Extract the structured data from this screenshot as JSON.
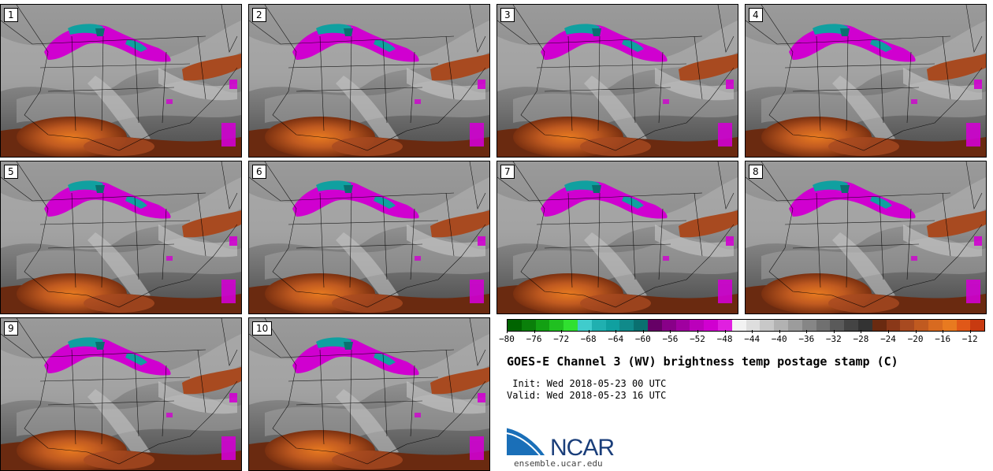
{
  "panels": [
    {
      "label": "1"
    },
    {
      "label": "2"
    },
    {
      "label": "3"
    },
    {
      "label": "4"
    },
    {
      "label": "5"
    },
    {
      "label": "6"
    },
    {
      "label": "7"
    },
    {
      "label": "8"
    },
    {
      "label": "9"
    },
    {
      "label": "10"
    }
  ],
  "colorbar": {
    "ticks": [
      "−80",
      "−76",
      "−72",
      "−68",
      "−64",
      "−60",
      "−56",
      "−52",
      "−48",
      "−44",
      "−40",
      "−36",
      "−32",
      "−28",
      "−24",
      "−20",
      "−16",
      "−12"
    ],
    "range": [
      -80,
      -10
    ],
    "colors": [
      "#006400",
      "#0a7f0a",
      "#13a013",
      "#20c020",
      "#30e030",
      "#40cccc",
      "#20b0b0",
      "#10a0a0",
      "#108a8a",
      "#0a7070",
      "#660066",
      "#880088",
      "#a000a0",
      "#bb00bb",
      "#d000d0",
      "#e020e0",
      "#f2f2f2",
      "#dedede",
      "#c8c8c8",
      "#b2b2b2",
      "#9c9c9c",
      "#868686",
      "#707070",
      "#5a5a5a",
      "#444444",
      "#333333",
      "#6a2a10",
      "#8a3818",
      "#a84a20",
      "#c05a20",
      "#d86a20",
      "#e87a20",
      "#e05818",
      "#c83a10"
    ]
  },
  "title": "GOES-E Channel 3 (WV) brightness temp postage stamp (C)",
  "init": " Init: Wed 2018-05-23 00 UTC",
  "valid": "Valid: Wed 2018-05-23 16 UTC",
  "logo": {
    "text": "NCAR",
    "site": "ensemble.ucar.edu"
  }
}
